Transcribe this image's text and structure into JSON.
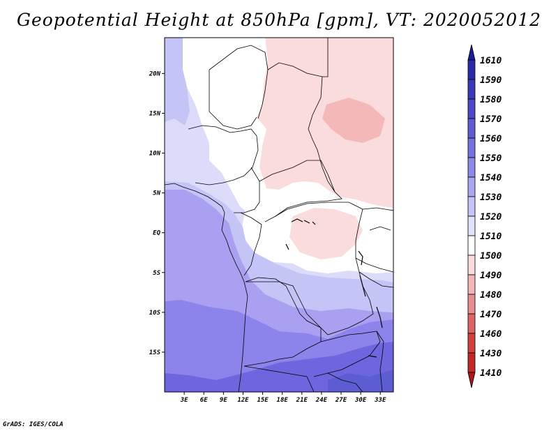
{
  "title": "Geopotential Height at 850hPa [gpm], VT: 2020052012",
  "credit": "GrADS: IGES/COLA",
  "map": {
    "lon_range": [
      0,
      35
    ],
    "lat_range": [
      -20,
      24.5
    ],
    "lon_ticks": [
      3,
      6,
      9,
      12,
      15,
      18,
      21,
      24,
      27,
      30,
      33
    ],
    "lon_tick_labels": [
      "3E",
      "6E",
      "9E",
      "12E",
      "15E",
      "18E",
      "21E",
      "24E",
      "27E",
      "30E",
      "33E"
    ],
    "lat_ticks": [
      20,
      15,
      10,
      5,
      0,
      -5,
      -10,
      -15
    ],
    "lat_tick_labels": [
      "20N",
      "15N",
      "10N",
      "5N",
      "EQ",
      "5S",
      "10S",
      "15S"
    ],
    "region_colors": {
      "pink_1490": "#f4b8b8",
      "pink_1500": "#fbdcdc",
      "white_1510": "#ffffff",
      "lav_1520": "#dcdcfa",
      "lav_1530": "#c4c4f6",
      "purple_1540": "#aaa0f2",
      "purple_1550": "#8c84ea",
      "purple_1560": "#6e66de"
    }
  },
  "colorbar": {
    "levels": [
      "1610",
      "1590",
      "1580",
      "1570",
      "1560",
      "1550",
      "1540",
      "1530",
      "1520",
      "1510",
      "1500",
      "1490",
      "1480",
      "1470",
      "1460",
      "1430",
      "1410"
    ],
    "colors": [
      "#1c1c94",
      "#2a2aa8",
      "#3838b8",
      "#4a48c6",
      "#5e5cd2",
      "#7472de",
      "#8c8ae8",
      "#a8a6f0",
      "#c6c4f6",
      "#e2e2fc",
      "#ffffff",
      "#fadada",
      "#f2b6b6",
      "#e88e8e",
      "#dc6464",
      "#d04040",
      "#c02828",
      "#a81818"
    ]
  }
}
